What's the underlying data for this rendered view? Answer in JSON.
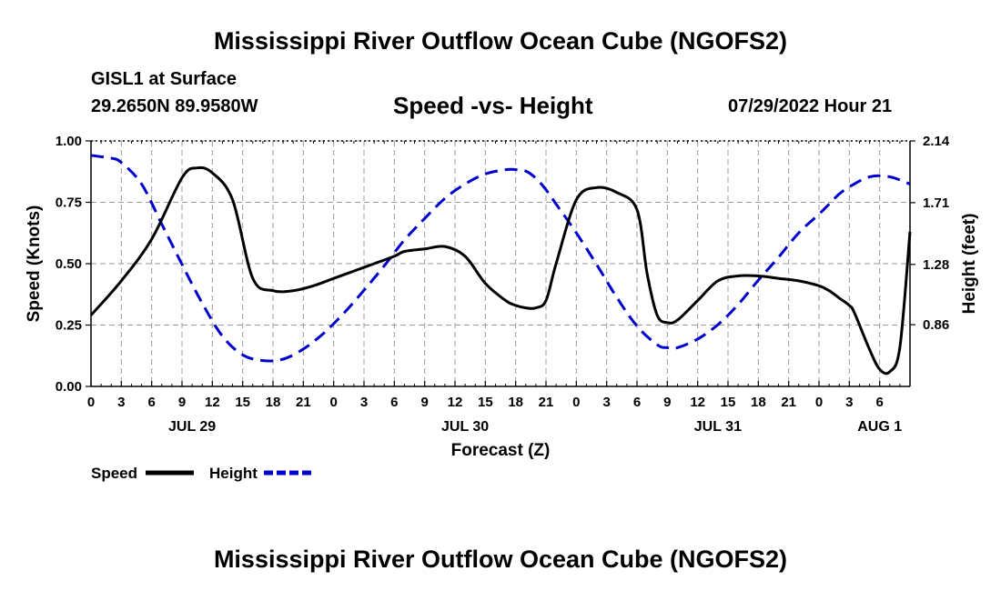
{
  "main_title": "Mississippi River Outflow Ocean Cube (NGOFS2)",
  "station": "GISL1 at Surface",
  "coords": "29.2650N  89.9580W",
  "timestamp": "07/29/2022 Hour 21",
  "footer_title": "Mississippi River Outflow Ocean Cube (NGOFS2)",
  "colors": {
    "speed": "#000000",
    "height": "#0000cc",
    "grid": "#999999"
  },
  "chart_data": {
    "type": "line",
    "title": "Speed -vs- Height",
    "xlabel": "Forecast (Z)",
    "ylabel": "Speed (Knots)",
    "y2label": "Height (feet)",
    "x_hours": [
      0,
      81
    ],
    "ylim": [
      0,
      1.0
    ],
    "y2lim": [
      0.43,
      2.14
    ],
    "yticks": [
      "0.00",
      "0.25",
      "0.50",
      "0.75",
      "1.00"
    ],
    "y2ticks": [
      "0.86",
      "1.28",
      "1.71",
      "2.14"
    ],
    "y2tick_values": [
      0.86,
      1.28,
      1.71,
      2.14
    ],
    "xtick_labels": [
      "0",
      "3",
      "6",
      "9",
      "12",
      "15",
      "18",
      "21",
      "0",
      "3",
      "6",
      "9",
      "12",
      "15",
      "18",
      "21",
      "0",
      "3",
      "6",
      "9",
      "12",
      "15",
      "18",
      "21",
      "0",
      "3",
      "6"
    ],
    "date_labels": [
      {
        "label": "JUL 29",
        "hour": 10
      },
      {
        "label": "JUL 30",
        "hour": 37
      },
      {
        "label": "JUL 31",
        "hour": 62
      },
      {
        "label": "AUG 1",
        "hour": 78
      }
    ],
    "legend": [
      {
        "name": "Speed",
        "style": "solid"
      },
      {
        "name": "Height",
        "style": "dashed"
      }
    ],
    "series": [
      {
        "name": "Speed",
        "x": [
          0,
          3,
          6,
          9,
          10.5,
          12,
          14,
          16,
          18,
          20,
          22,
          24,
          26,
          28,
          30,
          31,
          33,
          35,
          37,
          39,
          41,
          42,
          43,
          44,
          45,
          46,
          48,
          50,
          52,
          54,
          55,
          56,
          57,
          58,
          60,
          62,
          64,
          66,
          68,
          70,
          72,
          73,
          74,
          75,
          75.5,
          77,
          78,
          79,
          80,
          81
        ],
        "values": [
          0.29,
          0.43,
          0.6,
          0.85,
          0.89,
          0.87,
          0.76,
          0.44,
          0.39,
          0.39,
          0.41,
          0.44,
          0.47,
          0.5,
          0.53,
          0.55,
          0.56,
          0.57,
          0.53,
          0.42,
          0.35,
          0.33,
          0.32,
          0.32,
          0.35,
          0.5,
          0.76,
          0.81,
          0.79,
          0.72,
          0.46,
          0.29,
          0.26,
          0.27,
          0.35,
          0.43,
          0.45,
          0.45,
          0.44,
          0.43,
          0.41,
          0.39,
          0.36,
          0.33,
          0.3,
          0.15,
          0.07,
          0.06,
          0.16,
          0.63
        ]
      },
      {
        "name": "Height",
        "x": [
          0,
          1,
          2,
          3,
          5,
          7,
          9,
          11,
          13,
          15,
          17,
          19,
          21,
          23,
          25,
          27,
          29,
          31,
          33,
          35,
          37,
          39,
          41,
          42,
          43,
          44,
          45,
          46,
          48,
          50,
          52,
          54,
          56,
          57,
          58,
          60,
          62,
          64,
          66,
          68,
          70,
          72,
          73,
          74,
          75,
          77,
          79,
          81
        ],
        "values": [
          2.04,
          2.03,
          2.02,
          1.99,
          1.84,
          1.56,
          1.28,
          1.01,
          0.78,
          0.65,
          0.61,
          0.62,
          0.69,
          0.8,
          0.94,
          1.1,
          1.27,
          1.45,
          1.6,
          1.74,
          1.84,
          1.91,
          1.94,
          1.94,
          1.93,
          1.88,
          1.8,
          1.7,
          1.5,
          1.28,
          1.05,
          0.85,
          0.72,
          0.7,
          0.7,
          0.76,
          0.86,
          1.0,
          1.17,
          1.33,
          1.5,
          1.63,
          1.7,
          1.77,
          1.82,
          1.89,
          1.89,
          1.84
        ]
      }
    ]
  }
}
